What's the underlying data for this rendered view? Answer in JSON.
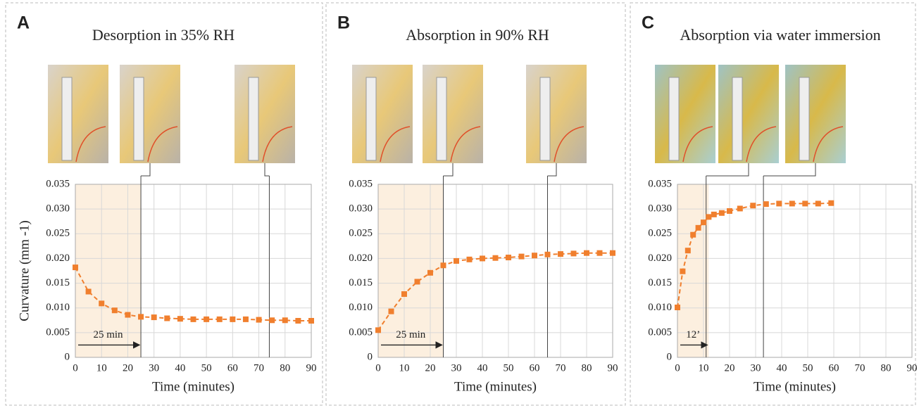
{
  "chart_data": [
    {
      "type": "line",
      "panel": "A",
      "title": "Desorption in 35% RH",
      "ylabel": "Curvature (mm -1)",
      "xlabel": "Time (minutes)",
      "x": [
        0,
        5,
        10,
        15,
        20,
        25,
        30,
        35,
        40,
        45,
        50,
        55,
        60,
        65,
        70,
        75,
        80,
        85,
        90
      ],
      "values": [
        0.0182,
        0.0133,
        0.0109,
        0.0095,
        0.0086,
        0.0082,
        0.0081,
        0.0079,
        0.0078,
        0.0077,
        0.0077,
        0.0077,
        0.0077,
        0.0077,
        0.0076,
        0.0075,
        0.0075,
        0.0074,
        0.0074
      ],
      "color": "#f07f2e",
      "xlim": [
        0,
        90
      ],
      "ylim": [
        0,
        0.035
      ],
      "xticks": [
        0,
        10,
        20,
        30,
        40,
        50,
        60,
        70,
        80,
        90
      ],
      "yticks": [
        0,
        0.005,
        {
          "value": 0.01,
          "label": "0.010"
        },
        0.015,
        {
          "value": 0.02,
          "label": "0.020"
        },
        0.025,
        {
          "value": 0.03,
          "label": "0.030"
        },
        0.035
      ],
      "grid": true,
      "shade_xlim": [
        0,
        25
      ],
      "vlines": [
        25,
        74
      ],
      "annotation": "25 min"
    },
    {
      "type": "line",
      "panel": "B",
      "title": "Absorption in 90% RH",
      "xlabel": "Time (minutes)",
      "x": [
        0,
        5,
        10,
        15,
        20,
        25,
        30,
        35,
        40,
        45,
        50,
        55,
        60,
        65,
        70,
        75,
        80,
        85,
        90
      ],
      "values": [
        0.0055,
        0.0093,
        0.0128,
        0.0153,
        0.0171,
        0.0186,
        0.0195,
        0.0198,
        0.02,
        0.0201,
        0.0202,
        0.0204,
        0.0206,
        0.0208,
        0.0209,
        0.021,
        0.0211,
        0.0211,
        0.0211
      ],
      "color": "#f07f2e",
      "xlim": [
        0,
        90
      ],
      "ylim": [
        0,
        0.035
      ],
      "xticks": [
        0,
        10,
        20,
        30,
        40,
        50,
        60,
        70,
        80,
        90
      ],
      "yticks": [
        0,
        0.005,
        {
          "value": 0.01,
          "label": "0.010"
        },
        0.015,
        {
          "value": 0.02,
          "label": "0.020"
        },
        0.025,
        {
          "value": 0.03,
          "label": "0.030"
        },
        0.035
      ],
      "grid": true,
      "shade_xlim": [
        0,
        25
      ],
      "vlines": [
        25,
        65
      ],
      "annotation": "25 min"
    },
    {
      "type": "line",
      "panel": "C",
      "title": "Absorption via water immersion",
      "xlabel": "Time (minutes)",
      "x": [
        0,
        2,
        4,
        6,
        8,
        10,
        12,
        14,
        17,
        20,
        24,
        29,
        34,
        39,
        44,
        49,
        54,
        59
      ],
      "values": [
        0.0101,
        0.0174,
        0.0216,
        0.0248,
        0.0262,
        0.0273,
        0.0284,
        0.0289,
        0.0292,
        0.0296,
        0.0301,
        0.0307,
        0.031,
        0.0311,
        0.0311,
        0.0311,
        0.0311,
        0.0312
      ],
      "color": "#f07f2e",
      "xlim": [
        0,
        90
      ],
      "ylim": [
        0,
        0.035
      ],
      "xticks": [
        0,
        10,
        20,
        30,
        40,
        50,
        60,
        70,
        80,
        90
      ],
      "yticks": [
        0,
        0.005,
        {
          "value": 0.01,
          "label": "0.010"
        },
        0.015,
        {
          "value": 0.02,
          "label": "0.020"
        },
        0.025,
        {
          "value": 0.03,
          "label": "0.030"
        },
        0.035
      ],
      "grid": true,
      "shade_xlim": [
        0,
        12
      ],
      "vlines": [
        11,
        33
      ],
      "annotation": "12’"
    }
  ]
}
